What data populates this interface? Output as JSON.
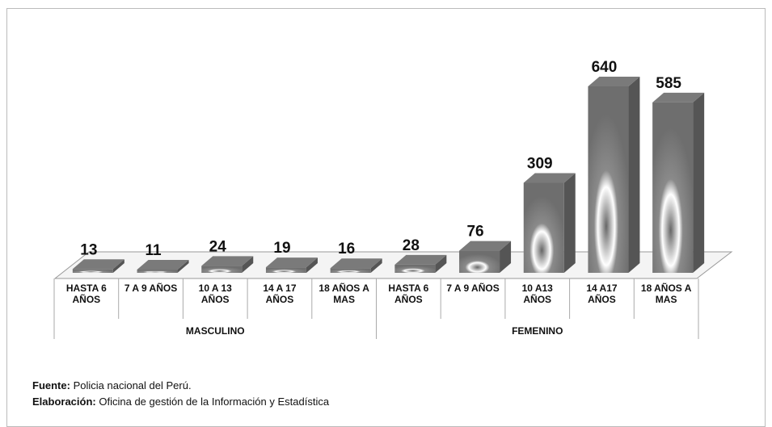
{
  "chart_data": {
    "type": "bar3d",
    "groups": [
      {
        "name": "MASCULINO",
        "categories": [
          "HASTA 6 AÑOS",
          "7 A 9 AÑOS",
          "10 A 13 AÑOS",
          "14 A 17 AÑOS",
          "18 AÑOS A MAS"
        ],
        "values": [
          13,
          11,
          24,
          19,
          16
        ]
      },
      {
        "name": "FEMENINO",
        "categories": [
          "HASTA 6 AÑOS",
          "7 A 9 AÑOS",
          "10 A13 AÑOS",
          "14 A17 AÑOS",
          "18 AÑOS A MAS"
        ],
        "values": [
          28,
          76,
          309,
          640,
          585
        ]
      }
    ],
    "color": "#7a7a7a",
    "source": {
      "label": "Fuente:",
      "text": "Policia nacional del Perú."
    },
    "credit": {
      "label": "Elaboración:",
      "text": "Oficina de gestión de la Información y Estadística"
    }
  }
}
